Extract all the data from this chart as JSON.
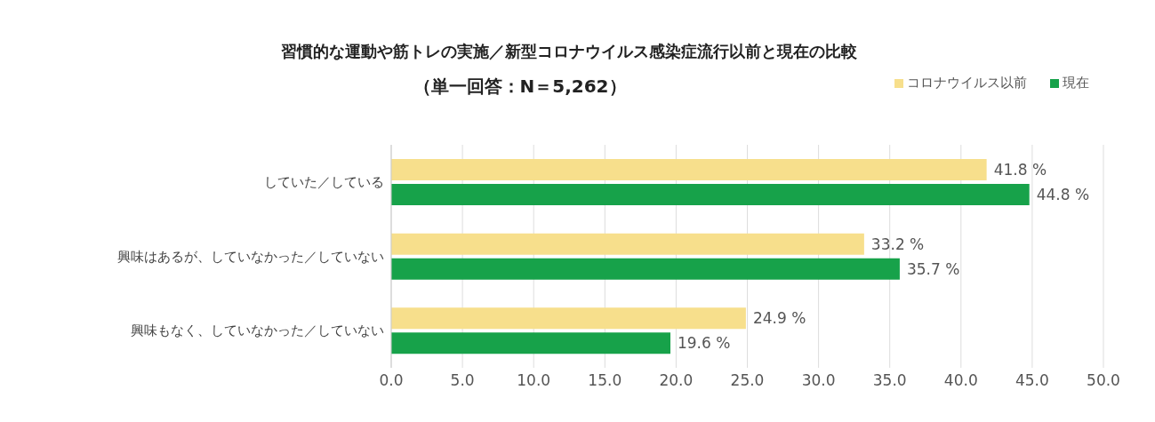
{
  "chart_data": {
    "type": "bar",
    "orientation": "horizontal",
    "title": "習慣的な運動や筋トレの実施／新型コロナウイルス感染症流行以前と現在の比較",
    "subtitle": "（単一回答：N＝5,262）",
    "categories": [
      "していた／している",
      "興味はあるが、していなかった／していない",
      "興味もなく、していなかった／していない"
    ],
    "series": [
      {
        "name": "コロナウイルス以前",
        "color": "#f7df8c",
        "values": [
          41.8,
          33.2,
          24.9
        ],
        "value_labels": [
          "41.8 %",
          "33.2 %",
          "24.9 %"
        ]
      },
      {
        "name": "現在",
        "color": "#17a24a",
        "values": [
          44.8,
          35.7,
          19.6
        ],
        "value_labels": [
          "44.8 %",
          "35.7 %",
          "19.6 %"
        ]
      }
    ],
    "xlim": [
      0,
      50
    ],
    "xticks": [
      {
        "value": 0,
        "label": "0.0"
      },
      {
        "value": 5,
        "label": "5.0"
      },
      {
        "value": 10,
        "label": "10.0"
      },
      {
        "value": 15,
        "label": "15.0"
      },
      {
        "value": 20,
        "label": "20.0"
      },
      {
        "value": 25,
        "label": "25.0"
      },
      {
        "value": 30,
        "label": "30.0"
      },
      {
        "value": 35,
        "label": "35.0"
      },
      {
        "value": 40,
        "label": "40.0"
      },
      {
        "value": 45,
        "label": "45.0"
      },
      {
        "value": 50,
        "label": "50.0"
      }
    ],
    "grid": "x",
    "legend": "top right"
  }
}
